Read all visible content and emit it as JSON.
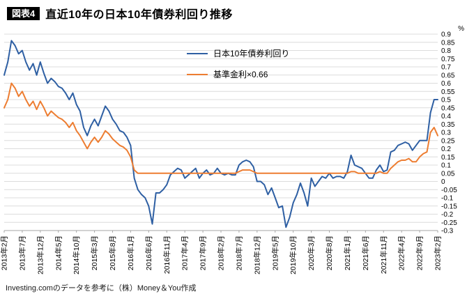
{
  "header": {
    "badge": "図表4",
    "title": "直近10年の日本10年債券利回り推移"
  },
  "footer": {
    "source": "Investing.comのデータを参考に（株）Money＆You作成"
  },
  "chart_data": {
    "type": "line",
    "title": "直近10年の日本10年債券利回り推移",
    "unit_label": "%",
    "ylim": [
      -0.3,
      0.9
    ],
    "ytick_step": 0.05,
    "grid": true,
    "legend_position": "top-center",
    "x_start": "2013年2月",
    "x_end": "2023年2月",
    "x_interval": "monthly",
    "x_tick_every": 5,
    "x_tick_labels": [
      "2013年2月",
      "2013年7月",
      "2013年12月",
      "2014年5月",
      "2014年10月",
      "2015年3月",
      "2015年8月",
      "2016年1月",
      "2016年6月",
      "2016年11月",
      "2017年4月",
      "2017年9月",
      "2018年2月",
      "2018年7月",
      "2018年12月",
      "2019年5月",
      "2019年10月",
      "2020年3月",
      "2020年8月",
      "2021年1月",
      "2021年6月",
      "2021年11月",
      "2022年4月",
      "2022年9月",
      "2023年2月"
    ],
    "y_ticks": [
      "0.9",
      "0.85",
      "0.8",
      "0.75",
      "0.7",
      "0.65",
      "0.6",
      "0.55",
      "0.5",
      "0.45",
      "0.4",
      "0.35",
      "0.3",
      "0.25",
      "0.2",
      "0.15",
      "0.1",
      "0.05",
      "0",
      "-0.05",
      "-0.1",
      "-0.15",
      "-0.2",
      "-0.25",
      "-0.3"
    ],
    "colors": {
      "grid": "#dcdcdc",
      "axis": "#a6a6a6",
      "tick_text": "#000000"
    },
    "series": [
      {
        "name": "日本10年債券利回り",
        "color": "#2e5fa3",
        "values": [
          0.65,
          0.73,
          0.86,
          0.83,
          0.78,
          0.8,
          0.73,
          0.68,
          0.72,
          0.65,
          0.73,
          0.66,
          0.6,
          0.63,
          0.61,
          0.58,
          0.57,
          0.54,
          0.5,
          0.54,
          0.47,
          0.43,
          0.33,
          0.28,
          0.34,
          0.38,
          0.34,
          0.4,
          0.46,
          0.43,
          0.38,
          0.35,
          0.31,
          0.3,
          0.27,
          0.22,
          0.02,
          -0.05,
          -0.08,
          -0.1,
          -0.15,
          -0.26,
          -0.07,
          -0.07,
          -0.05,
          -0.02,
          0.04,
          0.06,
          0.08,
          0.07,
          0.02,
          0.04,
          0.06,
          0.08,
          0.02,
          0.05,
          0.07,
          0.04,
          0.05,
          0.08,
          0.05,
          0.04,
          0.05,
          0.04,
          0.04,
          0.1,
          0.12,
          0.13,
          0.12,
          0.09,
          0.0,
          0.0,
          -0.02,
          -0.08,
          -0.04,
          -0.1,
          -0.16,
          -0.15,
          -0.28,
          -0.22,
          -0.13,
          -0.08,
          -0.01,
          -0.07,
          -0.15,
          0.02,
          -0.03,
          0.0,
          0.03,
          0.02,
          0.05,
          0.02,
          0.03,
          0.03,
          0.02,
          0.06,
          0.16,
          0.1,
          0.09,
          0.08,
          0.05,
          0.02,
          0.02,
          0.07,
          0.1,
          0.06,
          0.07,
          0.18,
          0.19,
          0.22,
          0.23,
          0.24,
          0.23,
          0.19,
          0.22,
          0.25,
          0.25,
          0.25,
          0.42,
          0.5,
          0.5
        ]
      },
      {
        "name": "基準金利×0.66",
        "color": "#ed7d31",
        "values": [
          0.45,
          0.5,
          0.6,
          0.57,
          0.52,
          0.55,
          0.5,
          0.46,
          0.49,
          0.44,
          0.49,
          0.45,
          0.4,
          0.43,
          0.41,
          0.39,
          0.38,
          0.36,
          0.33,
          0.36,
          0.31,
          0.28,
          0.24,
          0.2,
          0.24,
          0.27,
          0.24,
          0.27,
          0.31,
          0.29,
          0.26,
          0.24,
          0.22,
          0.21,
          0.19,
          0.15,
          0.07,
          0.05,
          0.05,
          0.05,
          0.05,
          0.05,
          0.05,
          0.05,
          0.05,
          0.05,
          0.05,
          0.05,
          0.05,
          0.05,
          0.05,
          0.05,
          0.05,
          0.05,
          0.05,
          0.05,
          0.05,
          0.05,
          0.05,
          0.05,
          0.05,
          0.05,
          0.05,
          0.05,
          0.05,
          0.06,
          0.07,
          0.07,
          0.07,
          0.06,
          0.05,
          0.05,
          0.05,
          0.05,
          0.05,
          0.05,
          0.05,
          0.05,
          0.05,
          0.05,
          0.05,
          0.05,
          0.05,
          0.05,
          0.05,
          0.05,
          0.05,
          0.05,
          0.05,
          0.05,
          0.05,
          0.05,
          0.05,
          0.05,
          0.05,
          0.05,
          0.06,
          0.06,
          0.05,
          0.05,
          0.05,
          0.05,
          0.05,
          0.05,
          0.06,
          0.05,
          0.05,
          0.08,
          0.1,
          0.12,
          0.13,
          0.13,
          0.14,
          0.12,
          0.12,
          0.15,
          0.17,
          0.18,
          0.3,
          0.33,
          0.28
        ]
      }
    ]
  }
}
